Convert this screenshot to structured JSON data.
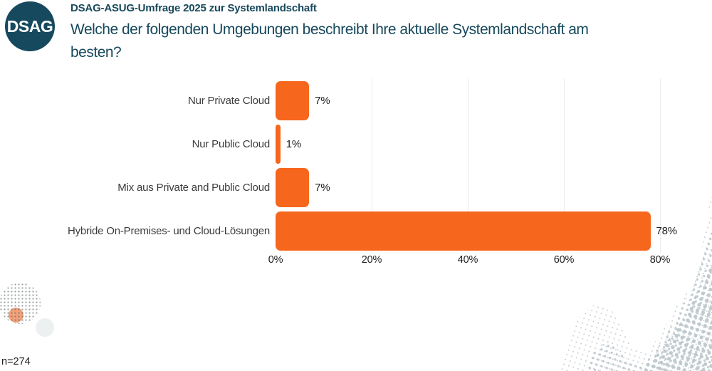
{
  "brand": {
    "logo_text": "DSAG"
  },
  "header": {
    "kicker": "DSAG-ASUG-Umfrage 2025 zur Systemlandschaft",
    "title": "Welche der folgenden Umgebungen beschreibt Ihre aktuelle Systemlandschaft am besten?"
  },
  "footnote": "n=274",
  "colors": {
    "accent": "#F6661D",
    "brand_teal": "#16495E",
    "heading_text": "#17495C",
    "label_text": "#3B3B3A",
    "value_text": "#1D1D1B",
    "gridline": "#ECECEC",
    "deco_dot": "#C5CED2",
    "deco_salmon": "#F1A17A"
  },
  "chart_data": {
    "type": "bar",
    "orientation": "horizontal",
    "title": "Welche der folgenden Umgebungen beschreibt Ihre aktuelle Systemlandschaft am besten?",
    "categories": [
      "Nur Private Cloud",
      "Nur Public Cloud",
      "Mix aus Private and Public Cloud",
      "Hybride On-Premises- und Cloud-Lösungen"
    ],
    "values": [
      7,
      1,
      7,
      78
    ],
    "value_labels": [
      "7%",
      "1%",
      "7%",
      "78%"
    ],
    "x_ticks": [
      "0%",
      "20%",
      "40%",
      "60%",
      "80%"
    ],
    "xlim": [
      0,
      80
    ],
    "xlabel": "",
    "ylabel": "",
    "grid": true,
    "legend": false,
    "sample_size": "n=274"
  }
}
